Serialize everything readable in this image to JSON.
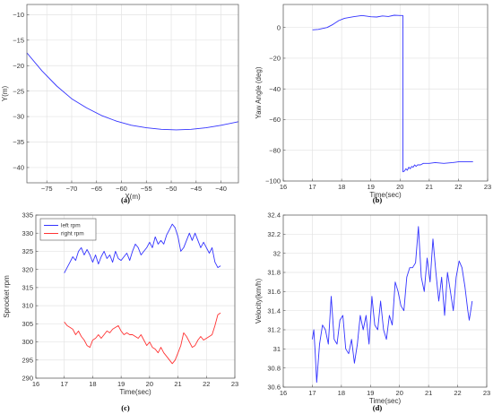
{
  "figure": {
    "caption_a": "(a)",
    "caption_b": "(b)",
    "caption_c": "(c)",
    "caption_d": "(d)"
  },
  "chart_data": [
    {
      "id": "a",
      "type": "line",
      "xlabel": "X(m)",
      "ylabel": "Y(m)",
      "xlim": [
        -79,
        -36.5
      ],
      "ylim": [
        -43,
        -8
      ],
      "xticks": [
        -75,
        -70,
        -65,
        -60,
        -55,
        -50,
        -45,
        -40
      ],
      "yticks": [
        -10,
        -15,
        -20,
        -25,
        -30,
        -35,
        -40
      ],
      "grid": true,
      "series": [
        {
          "color": "#3333ff",
          "points": [
            [
              -79,
              -17.5
            ],
            [
              -76,
              -21
            ],
            [
              -73,
              -24
            ],
            [
              -70,
              -26.5
            ],
            [
              -67,
              -28.3
            ],
            [
              -64,
              -29.8
            ],
            [
              -61,
              -30.9
            ],
            [
              -58,
              -31.7
            ],
            [
              -55,
              -32.2
            ],
            [
              -52,
              -32.5
            ],
            [
              -49,
              -32.6
            ],
            [
              -46,
              -32.5
            ],
            [
              -43,
              -32.2
            ],
            [
              -40,
              -31.7
            ],
            [
              -36.5,
              -31.0
            ]
          ]
        }
      ]
    },
    {
      "id": "b",
      "type": "line",
      "xlabel": "Time(sec)",
      "ylabel": "Yaw Angle (deg)",
      "xlim": [
        16,
        23
      ],
      "ylim": [
        -100,
        15
      ],
      "xticks": [
        16,
        17,
        18,
        19,
        20,
        21,
        22,
        23
      ],
      "yticks": [
        0,
        -20,
        -40,
        -60,
        -80,
        -100
      ],
      "grid": true,
      "series": [
        {
          "color": "#3333ff",
          "points": [
            [
              17.0,
              -1.5
            ],
            [
              17.2,
              -1.2
            ],
            [
              17.5,
              0.0
            ],
            [
              17.7,
              2.0
            ],
            [
              17.9,
              4.5
            ],
            [
              18.1,
              6.0
            ],
            [
              18.4,
              7.0
            ],
            [
              18.7,
              7.8
            ],
            [
              19.0,
              7.0
            ],
            [
              19.2,
              6.8
            ],
            [
              19.4,
              7.5
            ],
            [
              19.6,
              7.2
            ],
            [
              19.8,
              8.0
            ],
            [
              20.0,
              7.8
            ],
            [
              20.1,
              7.8
            ],
            [
              20.1,
              -94
            ],
            [
              20.15,
              -93.5
            ],
            [
              20.2,
              -92
            ],
            [
              20.25,
              -93
            ],
            [
              20.3,
              -91
            ],
            [
              20.35,
              -92
            ],
            [
              20.4,
              -90.5
            ],
            [
              20.45,
              -91
            ],
            [
              20.5,
              -89.5
            ],
            [
              20.55,
              -90.5
            ],
            [
              20.6,
              -89.5
            ],
            [
              20.7,
              -89.5
            ],
            [
              20.8,
              -88.5
            ],
            [
              21.0,
              -88.5
            ],
            [
              21.2,
              -88.0
            ],
            [
              21.5,
              -88.5
            ],
            [
              21.8,
              -88.0
            ],
            [
              22.0,
              -87.5
            ],
            [
              22.2,
              -87.5
            ],
            [
              22.5,
              -87.5
            ]
          ]
        }
      ]
    },
    {
      "id": "c",
      "type": "line",
      "xlabel": "Time(sec)",
      "ylabel": "Sprocket rpm",
      "xlim": [
        16,
        23
      ],
      "ylim": [
        290,
        335
      ],
      "xticks": [
        16,
        17,
        18,
        19,
        20,
        21,
        22,
        23
      ],
      "yticks": [
        335,
        330,
        325,
        320,
        315,
        310,
        305,
        300,
        295,
        290
      ],
      "grid": true,
      "legend": {
        "position": "top-left"
      },
      "series": [
        {
          "name": "left rpm",
          "color": "#3333ff",
          "points": [
            [
              17.0,
              319
            ],
            [
              17.1,
              320.5
            ],
            [
              17.2,
              322
            ],
            [
              17.3,
              323.5
            ],
            [
              17.4,
              322.5
            ],
            [
              17.5,
              325
            ],
            [
              17.6,
              326
            ],
            [
              17.7,
              324
            ],
            [
              17.8,
              325.5
            ],
            [
              17.9,
              324
            ],
            [
              18.0,
              322
            ],
            [
              18.1,
              324
            ],
            [
              18.2,
              321.5
            ],
            [
              18.3,
              323.5
            ],
            [
              18.4,
              325
            ],
            [
              18.5,
              323
            ],
            [
              18.6,
              324
            ],
            [
              18.7,
              322
            ],
            [
              18.8,
              325
            ],
            [
              18.9,
              323
            ],
            [
              19.0,
              322.5
            ],
            [
              19.1,
              323.5
            ],
            [
              19.2,
              324.5
            ],
            [
              19.3,
              322.5
            ],
            [
              19.4,
              325
            ],
            [
              19.5,
              327
            ],
            [
              19.6,
              326
            ],
            [
              19.7,
              324
            ],
            [
              19.8,
              325
            ],
            [
              19.9,
              326
            ],
            [
              20.0,
              327.5
            ],
            [
              20.1,
              326
            ],
            [
              20.2,
              329
            ],
            [
              20.3,
              327
            ],
            [
              20.4,
              328
            ],
            [
              20.5,
              327
            ],
            [
              20.6,
              329.5
            ],
            [
              20.7,
              331
            ],
            [
              20.8,
              332.5
            ],
            [
              20.9,
              331.5
            ],
            [
              21.0,
              329
            ],
            [
              21.1,
              325
            ],
            [
              21.2,
              326
            ],
            [
              21.3,
              328
            ],
            [
              21.4,
              330
            ],
            [
              21.5,
              328
            ],
            [
              21.6,
              330
            ],
            [
              21.7,
              328
            ],
            [
              21.8,
              326
            ],
            [
              21.9,
              327.5
            ],
            [
              22.0,
              326
            ],
            [
              22.1,
              324.5
            ],
            [
              22.2,
              326
            ],
            [
              22.3,
              322
            ],
            [
              22.4,
              320.5
            ],
            [
              22.5,
              321
            ]
          ]
        },
        {
          "name": "right rpm",
          "color": "#ff3333",
          "points": [
            [
              17.0,
              305.5
            ],
            [
              17.1,
              304.5
            ],
            [
              17.2,
              304
            ],
            [
              17.3,
              303.5
            ],
            [
              17.4,
              302
            ],
            [
              17.5,
              303
            ],
            [
              17.6,
              301.5
            ],
            [
              17.7,
              300.5
            ],
            [
              17.8,
              299
            ],
            [
              17.9,
              298.5
            ],
            [
              18.0,
              300.5
            ],
            [
              18.1,
              301
            ],
            [
              18.2,
              302
            ],
            [
              18.3,
              301
            ],
            [
              18.4,
              302
            ],
            [
              18.5,
              303
            ],
            [
              18.6,
              302.5
            ],
            [
              18.7,
              303.5
            ],
            [
              18.8,
              304
            ],
            [
              18.9,
              304.5
            ],
            [
              19.0,
              303
            ],
            [
              19.1,
              302
            ],
            [
              19.2,
              302.5
            ],
            [
              19.3,
              302
            ],
            [
              19.4,
              302
            ],
            [
              19.5,
              301.5
            ],
            [
              19.6,
              301
            ],
            [
              19.7,
              302
            ],
            [
              19.8,
              300.5
            ],
            [
              19.9,
              299
            ],
            [
              20.0,
              300
            ],
            [
              20.1,
              298.5
            ],
            [
              20.2,
              298
            ],
            [
              20.3,
              297
            ],
            [
              20.4,
              298.5
            ],
            [
              20.5,
              297
            ],
            [
              20.6,
              296
            ],
            [
              20.7,
              295
            ],
            [
              20.8,
              294
            ],
            [
              20.9,
              295
            ],
            [
              21.0,
              297
            ],
            [
              21.1,
              299
            ],
            [
              21.2,
              302.5
            ],
            [
              21.3,
              301.5
            ],
            [
              21.4,
              300
            ],
            [
              21.5,
              298.5
            ],
            [
              21.6,
              299
            ],
            [
              21.7,
              300.5
            ],
            [
              21.8,
              301.5
            ],
            [
              21.9,
              300.5
            ],
            [
              22.0,
              301
            ],
            [
              22.1,
              301.5
            ],
            [
              22.2,
              302
            ],
            [
              22.3,
              304.5
            ],
            [
              22.4,
              307.5
            ],
            [
              22.5,
              308
            ]
          ]
        }
      ]
    },
    {
      "id": "d",
      "type": "line",
      "xlabel": "Time(sec)",
      "ylabel": "Velocity(km/h)",
      "xlim": [
        16,
        23
      ],
      "ylim": [
        30.6,
        32.4
      ],
      "xticks": [
        16,
        17,
        18,
        19,
        20,
        21,
        22,
        23
      ],
      "yticks": [
        32.4,
        32.2,
        32.0,
        31.8,
        31.6,
        31.4,
        31.2,
        31.0,
        30.8,
        30.6
      ],
      "grid": true,
      "series": [
        {
          "color": "#3333ff",
          "points": [
            [
              17.0,
              31.1
            ],
            [
              17.05,
              31.2
            ],
            [
              17.1,
              30.95
            ],
            [
              17.15,
              30.65
            ],
            [
              17.25,
              31.05
            ],
            [
              17.35,
              31.25
            ],
            [
              17.45,
              31.2
            ],
            [
              17.55,
              31.05
            ],
            [
              17.65,
              31.55
            ],
            [
              17.75,
              31.1
            ],
            [
              17.85,
              31.05
            ],
            [
              17.95,
              31.3
            ],
            [
              18.05,
              31.35
            ],
            [
              18.15,
              31.0
            ],
            [
              18.25,
              30.95
            ],
            [
              18.35,
              31.1
            ],
            [
              18.45,
              30.85
            ],
            [
              18.55,
              31.05
            ],
            [
              18.65,
              31.35
            ],
            [
              18.75,
              31.2
            ],
            [
              18.85,
              31.35
            ],
            [
              18.95,
              31.05
            ],
            [
              19.05,
              31.55
            ],
            [
              19.15,
              31.25
            ],
            [
              19.25,
              31.2
            ],
            [
              19.35,
              31.5
            ],
            [
              19.45,
              31.2
            ],
            [
              19.55,
              31.1
            ],
            [
              19.65,
              31.35
            ],
            [
              19.75,
              31.25
            ],
            [
              19.85,
              31.7
            ],
            [
              19.95,
              31.6
            ],
            [
              20.05,
              31.45
            ],
            [
              20.15,
              31.4
            ],
            [
              20.25,
              31.75
            ],
            [
              20.35,
              31.85
            ],
            [
              20.45,
              31.85
            ],
            [
              20.55,
              31.9
            ],
            [
              20.65,
              32.28
            ],
            [
              20.75,
              31.75
            ],
            [
              20.85,
              31.6
            ],
            [
              20.95,
              31.95
            ],
            [
              21.05,
              31.7
            ],
            [
              21.15,
              32.15
            ],
            [
              21.25,
              31.8
            ],
            [
              21.35,
              31.5
            ],
            [
              21.45,
              31.75
            ],
            [
              21.55,
              31.35
            ],
            [
              21.65,
              31.8
            ],
            [
              21.75,
              31.6
            ],
            [
              21.85,
              31.4
            ],
            [
              21.95,
              31.75
            ],
            [
              22.05,
              31.92
            ],
            [
              22.15,
              31.85
            ],
            [
              22.25,
              31.65
            ],
            [
              22.35,
              31.4
            ],
            [
              22.4,
              31.3
            ],
            [
              22.5,
              31.5
            ]
          ]
        }
      ]
    }
  ]
}
